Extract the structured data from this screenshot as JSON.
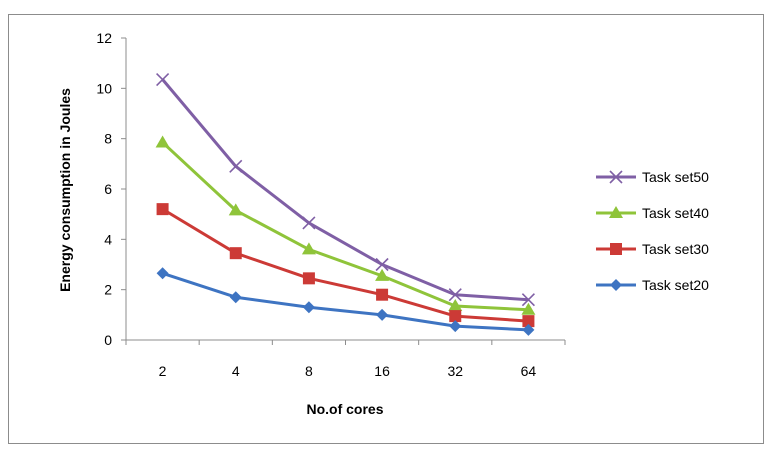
{
  "chart_data": {
    "type": "line",
    "title": "",
    "xlabel": "No.of cores",
    "ylabel": "Energy consumption in Joules",
    "categories": [
      "2",
      "4",
      "8",
      "16",
      "32",
      "64"
    ],
    "ylim": [
      0,
      12
    ],
    "yticks": [
      0,
      2,
      4,
      6,
      8,
      10,
      12
    ],
    "grid": false,
    "legend_position": "right",
    "series": [
      {
        "name": "Task set50",
        "color": "#7f5fa5",
        "marker": "x",
        "values": [
          10.35,
          6.9,
          4.65,
          3.0,
          1.8,
          1.6
        ]
      },
      {
        "name": "Task set40",
        "color": "#8fc43a",
        "marker": "triangle",
        "values": [
          7.85,
          5.15,
          3.6,
          2.55,
          1.35,
          1.2
        ]
      },
      {
        "name": "Task set30",
        "color": "#cc3a36",
        "marker": "square",
        "values": [
          5.2,
          3.45,
          2.45,
          1.8,
          0.95,
          0.75
        ]
      },
      {
        "name": "Task set20",
        "color": "#3e74c2",
        "marker": "diamond",
        "values": [
          2.65,
          1.7,
          1.3,
          1.0,
          0.55,
          0.4
        ]
      }
    ]
  }
}
